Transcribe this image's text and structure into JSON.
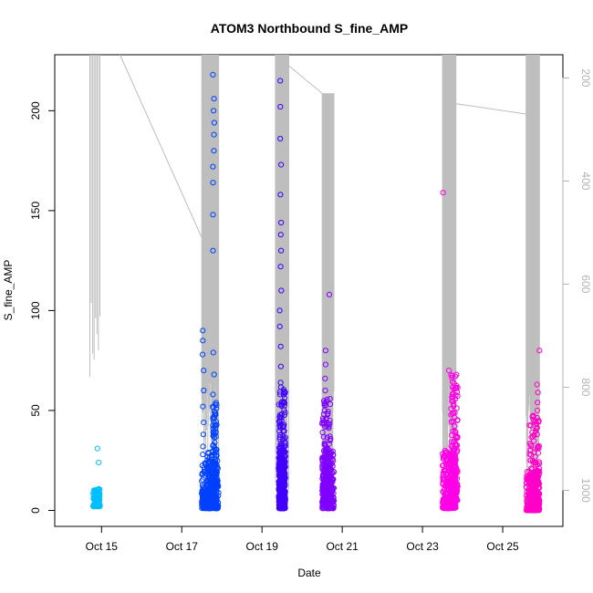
{
  "chart_data": {
    "type": "scatter",
    "title": "ATOM3 Northbound S_fine_AMP",
    "xlabel": "Date",
    "ylabel": "S_fine_AMP",
    "xlim": [
      "2014-10-13T20:00",
      "2014-10-26T12:00"
    ],
    "ylim": [
      -8,
      228
    ],
    "y2lim": [
      1070,
      155
    ],
    "y2_reversed": true,
    "x_ticks": [
      {
        "value": "2014-10-15",
        "label": "Oct 15"
      },
      {
        "value": "2014-10-17",
        "label": "Oct 17"
      },
      {
        "value": "2014-10-19",
        "label": "Oct 19"
      },
      {
        "value": "2014-10-21",
        "label": "Oct 21"
      },
      {
        "value": "2014-10-23",
        "label": "Oct 23"
      },
      {
        "value": "2014-10-25",
        "label": "Oct 25"
      }
    ],
    "y_ticks": [
      0,
      50,
      100,
      150,
      200
    ],
    "y2_ticks": [
      200,
      400,
      600,
      800,
      1000
    ],
    "grid": false,
    "legend": "none",
    "colors": {
      "line": "#bebebe",
      "right_axis": "#b3b3b3",
      "ramp": [
        "#00bfff",
        "#0040ff",
        "#4000ff",
        "#8000ff",
        "#ff00e6",
        "#ff00c8"
      ]
    },
    "series": [
      {
        "color": "#00bfff",
        "cluster": {
          "x_start": "2014-10-14T19:00",
          "x_end": "2014-10-14T23:00",
          "y_min": 2,
          "y_max": 11,
          "count": 160
        },
        "points": [
          {
            "x": "2014-10-14T22:00",
            "y": 31
          },
          {
            "x": "2014-10-14T22:30",
            "y": 24
          }
        ]
      },
      {
        "color": "#0040ff",
        "cluster": {
          "x_start": "2014-10-17T12:00",
          "x_end": "2014-10-17T22:00",
          "y_min": 1,
          "y_max": 25,
          "count": 260
        },
        "points": [
          {
            "x": "2014-10-17T13:00",
            "y": 90
          },
          {
            "x": "2014-10-17T13:00",
            "y": 85
          },
          {
            "x": "2014-10-17T13:00",
            "y": 78
          },
          {
            "x": "2014-10-17T13:00",
            "y": 70
          },
          {
            "x": "2014-10-17T13:00",
            "y": 60
          },
          {
            "x": "2014-10-17T13:00",
            "y": 52
          },
          {
            "x": "2014-10-17T13:00",
            "y": 44
          },
          {
            "x": "2014-10-17T13:00",
            "y": 38
          },
          {
            "x": "2014-10-17T13:00",
            "y": 32
          },
          {
            "x": "2014-10-17T13:00",
            "y": 28
          },
          {
            "x": "2014-10-17T19:00",
            "y": 218
          },
          {
            "x": "2014-10-17T19:00",
            "y": 206
          },
          {
            "x": "2014-10-17T19:00",
            "y": 200
          },
          {
            "x": "2014-10-17T19:00",
            "y": 194
          },
          {
            "x": "2014-10-17T19:00",
            "y": 188
          },
          {
            "x": "2014-10-17T19:00",
            "y": 180
          },
          {
            "x": "2014-10-17T19:00",
            "y": 172
          },
          {
            "x": "2014-10-17T19:00",
            "y": 164
          },
          {
            "x": "2014-10-17T19:00",
            "y": 148
          },
          {
            "x": "2014-10-17T19:00",
            "y": 130
          },
          {
            "x": "2014-10-17T19:00",
            "y": 79
          },
          {
            "x": "2014-10-17T19:00",
            "y": 68
          },
          {
            "x": "2014-10-17T19:00",
            "y": 58
          }
        ],
        "dense": [
          {
            "x_start": "2014-10-17T18:30",
            "x_end": "2014-10-17T21:00",
            "y_min": 2,
            "y_max": 55,
            "count": 120
          },
          {
            "x_start": "2014-10-17T15:00",
            "x_end": "2014-10-17T18:30",
            "y_min": 5,
            "y_max": 30,
            "count": 60
          }
        ]
      },
      {
        "color": "#4000ff",
        "cluster": {
          "x_start": "2014-10-19T10:00",
          "x_end": "2014-10-19T14:00",
          "y_min": 1,
          "y_max": 30,
          "count": 260
        },
        "points": [
          {
            "x": "2014-10-19T11:00",
            "y": 215
          },
          {
            "x": "2014-10-19T11:00",
            "y": 202
          },
          {
            "x": "2014-10-19T11:00",
            "y": 186
          },
          {
            "x": "2014-10-19T11:00",
            "y": 173
          },
          {
            "x": "2014-10-19T11:00",
            "y": 158
          },
          {
            "x": "2014-10-19T11:00",
            "y": 144
          },
          {
            "x": "2014-10-19T11:00",
            "y": 138
          },
          {
            "x": "2014-10-19T11:00",
            "y": 130
          },
          {
            "x": "2014-10-19T11:00",
            "y": 122
          },
          {
            "x": "2014-10-19T11:00",
            "y": 110
          },
          {
            "x": "2014-10-19T11:00",
            "y": 100
          },
          {
            "x": "2014-10-19T11:00",
            "y": 92
          },
          {
            "x": "2014-10-19T11:00",
            "y": 82
          },
          {
            "x": "2014-10-19T11:00",
            "y": 72
          },
          {
            "x": "2014-10-19T11:00",
            "y": 64
          }
        ],
        "dense": [
          {
            "x_start": "2014-10-19T10:00",
            "x_end": "2014-10-19T14:00",
            "y_min": 1,
            "y_max": 62,
            "count": 200
          }
        ]
      },
      {
        "color": "#8000ff",
        "cluster": {
          "x_start": "2014-10-20T12:00",
          "x_end": "2014-10-20T19:00",
          "y_min": 1,
          "y_max": 30,
          "count": 240
        },
        "points": [
          {
            "x": "2014-10-20T16:00",
            "y": 108
          },
          {
            "x": "2014-10-20T14:00",
            "y": 80
          },
          {
            "x": "2014-10-20T14:00",
            "y": 73
          },
          {
            "x": "2014-10-20T14:00",
            "y": 66
          },
          {
            "x": "2014-10-20T14:00",
            "y": 60
          }
        ],
        "dense": [
          {
            "x_start": "2014-10-20T12:00",
            "x_end": "2014-10-20T17:00",
            "y_min": 2,
            "y_max": 58,
            "count": 160
          }
        ]
      },
      {
        "color": "#ff00e6",
        "cluster": {
          "x_start": "2014-10-23T12:00",
          "x_end": "2014-10-23T20:00",
          "y_min": 1,
          "y_max": 30,
          "count": 260
        },
        "points": [
          {
            "x": "2014-10-23T12:00",
            "y": 159
          },
          {
            "x": "2014-10-23T16:00",
            "y": 70
          }
        ],
        "dense": [
          {
            "x_start": "2014-10-23T17:00",
            "x_end": "2014-10-23T21:00",
            "y_min": 5,
            "y_max": 68,
            "count": 180
          }
        ]
      },
      {
        "color": "#ff00c8",
        "cluster": {
          "x_start": "2014-10-25T14:00",
          "x_end": "2014-10-25T22:00",
          "y_min": 0,
          "y_max": 20,
          "count": 220
        },
        "points": [
          {
            "x": "2014-10-25T22:00",
            "y": 80
          },
          {
            "x": "2014-10-25T20:00",
            "y": 63
          },
          {
            "x": "2014-10-25T21:00",
            "y": 59
          },
          {
            "x": "2014-10-25T21:00",
            "y": 54
          },
          {
            "x": "2014-10-25T21:00",
            "y": 50
          }
        ],
        "dense": [
          {
            "x_start": "2014-10-25T16:00",
            "x_end": "2014-10-25T22:00",
            "y_min": 0,
            "y_max": 48,
            "count": 160
          }
        ]
      }
    ],
    "right_line": {
      "color": "#bebebe",
      "spikes": [
        {
          "x_start": "2014-10-14T17:00",
          "x_end": "2014-10-14T23:00",
          "y2_min": 780,
          "y2_max": 155,
          "count": 8
        },
        {
          "x_start": "2014-10-17T12:00",
          "x_end": "2014-10-17T22:00",
          "y2_min": 980,
          "y2_max": 155,
          "count": 40
        },
        {
          "x_start": "2014-10-19T08:00",
          "x_end": "2014-10-19T16:00",
          "y2_min": 1000,
          "y2_max": 155,
          "count": 55
        },
        {
          "x_start": "2014-10-20T12:00",
          "x_end": "2014-10-20T19:00",
          "y2_min": 990,
          "y2_max": 230,
          "count": 45
        },
        {
          "x_start": "2014-10-23T12:00",
          "x_end": "2014-10-23T20:00",
          "y2_min": 1010,
          "y2_max": 155,
          "count": 45
        },
        {
          "x_start": "2014-10-25T14:00",
          "x_end": "2014-10-25T22:00",
          "y2_min": 1010,
          "y2_max": 155,
          "count": 35
        }
      ],
      "connectors": [
        {
          "from": {
            "x": "2014-10-15T11:00",
            "y2": 155
          },
          "to": {
            "x": "2014-10-17T12:00",
            "y2": 510
          }
        },
        {
          "from": {
            "x": "2014-10-19T08:00",
            "y2": 155
          },
          "to": {
            "x": "2014-10-20T12:00",
            "y2": 230
          }
        },
        {
          "from": {
            "x": "2014-10-23T20:00",
            "y2": 250
          },
          "to": {
            "x": "2014-10-25T14:00",
            "y2": 270
          }
        }
      ]
    }
  }
}
